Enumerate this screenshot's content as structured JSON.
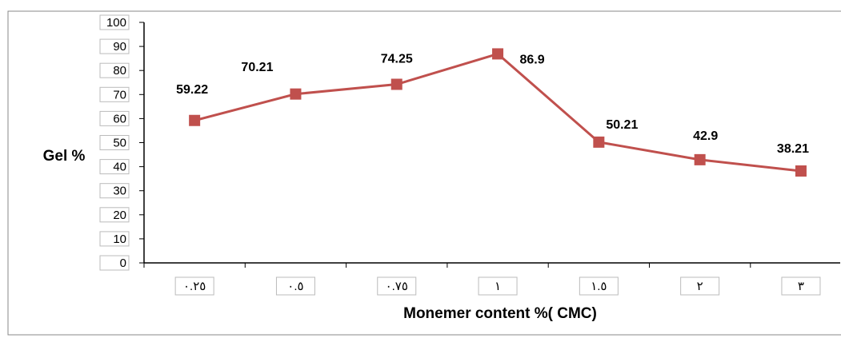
{
  "chart_data": {
    "type": "line",
    "title": null,
    "y_label": "Gel %",
    "x_label": "Monemer content %( CMC)",
    "categories": [
      "٠.٢٥",
      "٠.٥",
      "٠.٧٥",
      "١",
      "١.٥",
      "٢",
      "٣"
    ],
    "series": [
      {
        "name": "Gel %",
        "color": "#c0504d",
        "values": [
          59.22,
          70.21,
          74.25,
          86.9,
          50.21,
          42.9,
          38.21
        ]
      }
    ],
    "ylim": [
      0,
      100
    ],
    "yticks": [
      0,
      10,
      20,
      30,
      40,
      50,
      60,
      70,
      80,
      90,
      100
    ],
    "grid": false,
    "legend": false
  }
}
